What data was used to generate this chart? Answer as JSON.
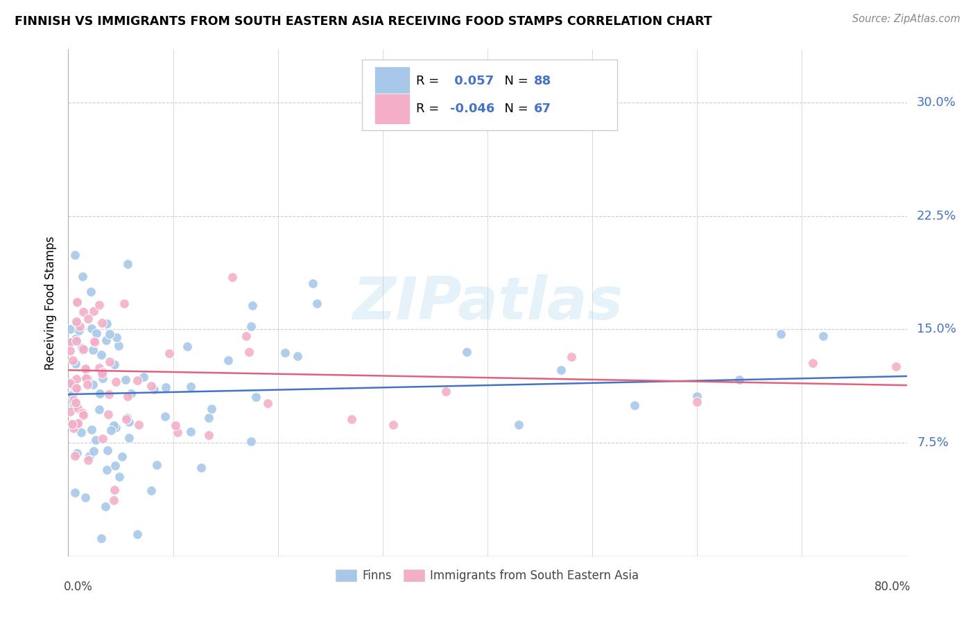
{
  "title": "FINNISH VS IMMIGRANTS FROM SOUTH EASTERN ASIA RECEIVING FOOD STAMPS CORRELATION CHART",
  "source": "Source: ZipAtlas.com",
  "ylabel": "Receiving Food Stamps",
  "ytick_values": [
    0.075,
    0.15,
    0.225,
    0.3
  ],
  "xlim": [
    0.0,
    0.8
  ],
  "ylim": [
    0.0,
    0.335
  ],
  "color_finns": "#a8c8ea",
  "color_immigrants": "#f4afc8",
  "trendline_color_finns": "#4472c4",
  "trendline_color_immigrants": "#e06080",
  "watermark": "ZIPatlas",
  "legend_text_color": "#4472c4",
  "legend_r1_black": "R = ",
  "legend_r1_blue": " 0.057",
  "legend_n1_black": "  N = ",
  "legend_n1_blue": "88",
  "legend_r2_black": "R = ",
  "legend_r2_blue": "-0.046",
  "legend_n2_black": "  N = ",
  "legend_n2_blue": "67"
}
